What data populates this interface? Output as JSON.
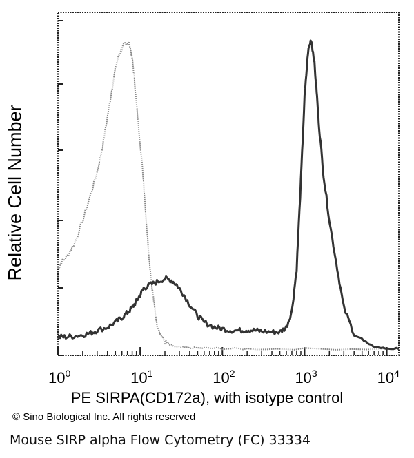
{
  "chart_data": {
    "type": "line",
    "title": "",
    "xlabel": "PE SIRPA(CD172a), with isotype control",
    "ylabel": "Relative Cell Number",
    "x_scale": "log",
    "xlim": [
      1,
      14000
    ],
    "ylim": [
      0,
      100
    ],
    "x_ticks": [
      {
        "value": 1,
        "base": "10",
        "exp": "0"
      },
      {
        "value": 10,
        "base": "10",
        "exp": "1"
      },
      {
        "value": 100,
        "base": "10",
        "exp": "2"
      },
      {
        "value": 1000,
        "base": "10",
        "exp": "3"
      },
      {
        "value": 10000,
        "base": "10",
        "exp": "4"
      }
    ],
    "grid": false,
    "series": [
      {
        "role": "isotype control",
        "color": "#8a8a8a",
        "style": "dotted",
        "x": [
          1,
          1.1,
          1.3,
          1.6,
          2,
          2.5,
          3,
          3.5,
          4,
          4.5,
          5,
          5.5,
          6,
          6.5,
          7,
          7.5,
          8,
          8.5,
          9,
          10,
          11,
          12,
          13,
          14,
          15,
          16,
          18,
          20,
          23,
          28,
          40,
          60,
          100,
          200,
          1000,
          14000
        ],
        "y": [
          25,
          27,
          29,
          33,
          40,
          48,
          55,
          63,
          72,
          80,
          87,
          91,
          93,
          94.5,
          95,
          94,
          90,
          84,
          76,
          64,
          52,
          38,
          27,
          19,
          13,
          8,
          4.5,
          2.5,
          1.5,
          0.8,
          0.6,
          0.5,
          0.4,
          0.3,
          0.3,
          0.3
        ]
      },
      {
        "role": "PE SIRPA(CD172a)",
        "color": "#333333",
        "style": "solid",
        "x": [
          1,
          1.2,
          1.5,
          2,
          2.5,
          3,
          4,
          5,
          6,
          7,
          8,
          9,
          10,
          11,
          13,
          16,
          20,
          24,
          28,
          33,
          40,
          50,
          60,
          80,
          100,
          130,
          170,
          200,
          250,
          300,
          400,
          500,
          600,
          700,
          800,
          900,
          1000,
          1100,
          1200,
          1300,
          1400,
          1500,
          1700,
          2000,
          2500,
          3000,
          4000,
          6000,
          9000,
          14000
        ],
        "y": [
          4,
          4,
          4.2,
          4.6,
          5.2,
          6,
          7,
          8.5,
          10,
          11.5,
          13,
          15,
          17,
          19,
          20,
          21,
          22,
          21.5,
          20,
          17.5,
          14,
          10.5,
          8.5,
          7,
          6.5,
          6,
          6,
          6.2,
          6,
          5.8,
          5.5,
          5.5,
          7,
          12,
          25,
          52,
          78,
          92,
          96,
          90,
          80,
          69,
          54,
          40,
          25,
          13,
          5,
          1.5,
          0.5,
          0.3
        ]
      }
    ]
  },
  "copyright": "© Sino Biological Inc. All rights reserved",
  "caption": "Mouse SIRP alpha Flow Cytometry (FC) 33334"
}
